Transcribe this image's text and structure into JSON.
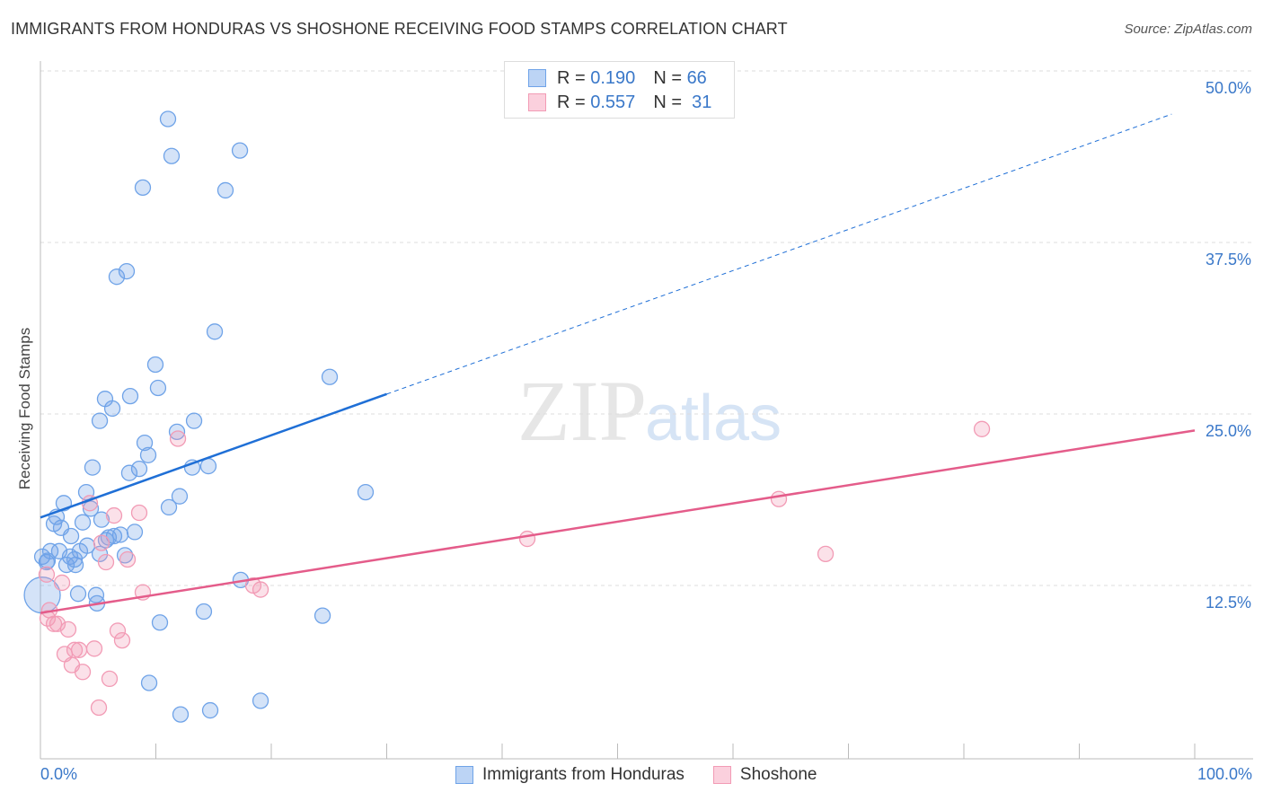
{
  "title": "IMMIGRANTS FROM HONDURAS VS SHOSHONE RECEIVING FOOD STAMPS CORRELATION CHART",
  "source": "Source: ZipAtlas.com",
  "watermark": {
    "zip": "ZIP",
    "atlas": "atlas"
  },
  "legend_top": [
    {
      "r_label": "R =",
      "r": "0.190",
      "n_label": "N =",
      "n": "66"
    },
    {
      "r_label": "R =",
      "r": "0.557",
      "n_label": "N =",
      "n": "31"
    }
  ],
  "chart_data": {
    "type": "scatter",
    "title": "IMMIGRANTS FROM HONDURAS VS SHOSHONE RECEIVING FOOD STAMPS CORRELATION CHART",
    "xlabel": "",
    "ylabel": "Receiving Food Stamps",
    "xlim": [
      0,
      100
    ],
    "ylim": [
      0,
      50
    ],
    "x_tick_labels": [
      "0.0%",
      "100.0%"
    ],
    "y_ticks": [
      12.5,
      25,
      37.5,
      50
    ],
    "y_tick_labels": [
      "12.5%",
      "25.0%",
      "37.5%",
      "50.0%"
    ],
    "grid": true,
    "legend_position": "bottom",
    "series": [
      {
        "name": "Immigrants from Honduras",
        "color": "#6fa3e8",
        "line_color": "#1f6fd6",
        "trend": {
          "intercept": 17.45,
          "slope": 0.3,
          "solid_to": 30,
          "dashed_to": 98
        },
        "points": [
          [
            11.05,
            46.5
          ],
          [
            11.36,
            43.8
          ],
          [
            17.28,
            44.2
          ],
          [
            8.87,
            41.5
          ],
          [
            16.03,
            41.3
          ],
          [
            6.61,
            35.0
          ],
          [
            7.47,
            35.4
          ],
          [
            15.1,
            31.0
          ],
          [
            9.96,
            28.6
          ],
          [
            10.19,
            26.9
          ],
          [
            25.06,
            27.7
          ],
          [
            5.6,
            26.1
          ],
          [
            7.78,
            26.3
          ],
          [
            6.23,
            25.4
          ],
          [
            5.14,
            24.5
          ],
          [
            13.31,
            24.5
          ],
          [
            9.03,
            22.9
          ],
          [
            11.83,
            23.7
          ],
          [
            9.34,
            22.0
          ],
          [
            8.56,
            21.0
          ],
          [
            4.51,
            21.1
          ],
          [
            7.7,
            20.7
          ],
          [
            13.15,
            21.1
          ],
          [
            14.55,
            21.2
          ],
          [
            28.17,
            19.3
          ],
          [
            3.97,
            19.3
          ],
          [
            2.02,
            18.5
          ],
          [
            4.36,
            18.1
          ],
          [
            12.06,
            19.0
          ],
          [
            11.13,
            18.2
          ],
          [
            1.4,
            17.5
          ],
          [
            1.17,
            17.0
          ],
          [
            3.66,
            17.1
          ],
          [
            5.29,
            17.3
          ],
          [
            1.79,
            16.7
          ],
          [
            2.65,
            16.1
          ],
          [
            8.17,
            16.4
          ],
          [
            5.91,
            16.0
          ],
          [
            6.93,
            16.2
          ],
          [
            6.38,
            16.1
          ],
          [
            5.68,
            15.8
          ],
          [
            4.05,
            15.4
          ],
          [
            1.63,
            15.0
          ],
          [
            3.42,
            15.0
          ],
          [
            0.86,
            15.0
          ],
          [
            0.16,
            14.6
          ],
          [
            0.62,
            14.3
          ],
          [
            2.57,
            14.6
          ],
          [
            2.26,
            14.0
          ],
          [
            3.04,
            14.0
          ],
          [
            5.14,
            14.8
          ],
          [
            7.32,
            14.7
          ],
          [
            17.35,
            12.9
          ],
          [
            3.27,
            11.9
          ],
          [
            4.82,
            11.8
          ],
          [
            4.9,
            11.2
          ],
          [
            0.16,
            11.8
          ],
          [
            14.16,
            10.6
          ],
          [
            24.44,
            10.3
          ],
          [
            10.35,
            9.8
          ],
          [
            9.42,
            5.4
          ],
          [
            19.07,
            4.1
          ],
          [
            12.14,
            3.1
          ],
          [
            14.71,
            3.4
          ],
          [
            0.54,
            14.2
          ],
          [
            2.96,
            14.4
          ]
        ]
      },
      {
        "name": "Shoshone",
        "color": "#f29bb5",
        "line_color": "#e45c8a",
        "trend": {
          "intercept": 10.5,
          "slope": 0.133,
          "solid_to": 100,
          "dashed_to": 100
        },
        "points": [
          [
            0.54,
            13.3
          ],
          [
            81.56,
            23.9
          ],
          [
            63.97,
            18.8
          ],
          [
            68.02,
            14.8
          ],
          [
            42.18,
            15.9
          ],
          [
            11.91,
            23.2
          ],
          [
            4.28,
            18.5
          ],
          [
            6.38,
            17.6
          ],
          [
            8.56,
            17.8
          ],
          [
            5.29,
            15.6
          ],
          [
            7.55,
            14.4
          ],
          [
            5.68,
            14.2
          ],
          [
            8.87,
            12.0
          ],
          [
            18.44,
            12.5
          ],
          [
            19.07,
            12.2
          ],
          [
            1.87,
            12.7
          ],
          [
            0.78,
            10.7
          ],
          [
            0.62,
            10.1
          ],
          [
            1.17,
            9.7
          ],
          [
            1.48,
            9.7
          ],
          [
            2.41,
            9.3
          ],
          [
            6.69,
            9.2
          ],
          [
            7.08,
            8.5
          ],
          [
            2.1,
            7.5
          ],
          [
            3.35,
            7.8
          ],
          [
            2.96,
            7.8
          ],
          [
            4.67,
            7.9
          ],
          [
            2.72,
            6.7
          ],
          [
            3.66,
            6.2
          ],
          [
            5.99,
            5.7
          ],
          [
            5.06,
            3.6
          ]
        ]
      }
    ]
  }
}
